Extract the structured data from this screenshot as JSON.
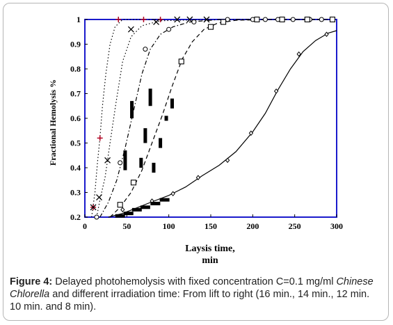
{
  "figure": {
    "label": "Figure 4:",
    "caption_part1": " Delayed photohemolysis with fixed concentration C=0.1 mg/ml ",
    "caption_italic": "Chinese Chlorella",
    "caption_part2": " and different irradiation time: From lift to right (16 min., 14 min., 12 min. 10 min. and 8 min)."
  },
  "chart_data": {
    "type": "scatter",
    "xlabel_line1": "Laysis time,",
    "xlabel_line2": "min",
    "ylabel": "Fractional Hemolysis %",
    "xlim": [
      0,
      300
    ],
    "ylim": [
      0.2,
      1.0
    ],
    "x_ticks": [
      "0",
      "50",
      "100",
      "150",
      "200",
      "250",
      "300"
    ],
    "y_ticks": [
      "0.2",
      "0.3",
      "0.4",
      "0.5",
      "0.6",
      "0.7",
      "0.8",
      "0.9",
      "1"
    ],
    "series": [
      {
        "marker": "plus",
        "color": "#b00020",
        "line": "dotted",
        "points": [
          [
            10,
            0.24
          ],
          [
            18,
            0.52
          ],
          [
            40,
            1.0
          ],
          [
            70,
            1.0
          ],
          [
            90,
            1.0
          ]
        ],
        "curve": [
          [
            8,
            0.2
          ],
          [
            12,
            0.3
          ],
          [
            15,
            0.42
          ],
          [
            18,
            0.52
          ],
          [
            21,
            0.65
          ],
          [
            25,
            0.78
          ],
          [
            30,
            0.9
          ],
          [
            36,
            0.97
          ],
          [
            45,
            1.0
          ],
          [
            95,
            1.0
          ]
        ]
      },
      {
        "marker": "x",
        "color": "#000000",
        "line": "dotted",
        "points": [
          [
            10,
            0.24
          ],
          [
            17,
            0.28
          ],
          [
            27,
            0.43
          ],
          [
            55,
            0.96
          ],
          [
            85,
            0.99
          ],
          [
            110,
            1.0
          ],
          [
            125,
            1.0
          ],
          [
            145,
            1.0
          ]
        ],
        "curve": [
          [
            14,
            0.2
          ],
          [
            18,
            0.27
          ],
          [
            24,
            0.36
          ],
          [
            30,
            0.5
          ],
          [
            37,
            0.66
          ],
          [
            45,
            0.83
          ],
          [
            55,
            0.93
          ],
          [
            68,
            0.975
          ],
          [
            90,
            0.995
          ],
          [
            150,
            1.0
          ]
        ]
      },
      {
        "marker": "circle",
        "color": "#000000",
        "line": "dash-dot",
        "points": [
          [
            14,
            0.2
          ],
          [
            42,
            0.42
          ],
          [
            72,
            0.88
          ],
          [
            100,
            0.96
          ],
          [
            130,
            0.99
          ],
          [
            170,
            1.0
          ],
          [
            200,
            1.0
          ],
          [
            215,
            1.0
          ],
          [
            230,
            1.0
          ],
          [
            248,
            1.0
          ],
          [
            268,
            1.0
          ],
          [
            282,
            1.0
          ]
        ],
        "curve": [
          [
            18,
            0.2
          ],
          [
            28,
            0.26
          ],
          [
            38,
            0.35
          ],
          [
            48,
            0.48
          ],
          [
            58,
            0.63
          ],
          [
            68,
            0.78
          ],
          [
            78,
            0.88
          ],
          [
            90,
            0.94
          ],
          [
            105,
            0.97
          ],
          [
            125,
            0.99
          ],
          [
            160,
            1.0
          ],
          [
            285,
            1.0
          ]
        ]
      },
      {
        "marker": "square",
        "color": "#000000",
        "line": "dashed",
        "points": [
          [
            42,
            0.25
          ],
          [
            58,
            0.34
          ],
          [
            115,
            0.83
          ],
          [
            150,
            0.97
          ],
          [
            165,
            0.99
          ],
          [
            205,
            1.0
          ],
          [
            235,
            1.0
          ],
          [
            265,
            1.0
          ],
          [
            295,
            1.0
          ]
        ],
        "curve": [
          [
            30,
            0.2
          ],
          [
            42,
            0.24
          ],
          [
            55,
            0.3
          ],
          [
            68,
            0.39
          ],
          [
            80,
            0.5
          ],
          [
            92,
            0.61
          ],
          [
            104,
            0.73
          ],
          [
            116,
            0.84
          ],
          [
            128,
            0.91
          ],
          [
            142,
            0.96
          ],
          [
            158,
            0.985
          ],
          [
            180,
            0.997
          ],
          [
            220,
            1.0
          ],
          [
            298,
            1.0
          ]
        ]
      },
      {
        "marker": "diamond",
        "color": "#000000",
        "line": "solid",
        "points": [
          [
            45,
            0.23
          ],
          [
            80,
            0.265
          ],
          [
            105,
            0.295
          ],
          [
            135,
            0.36
          ],
          [
            170,
            0.43
          ],
          [
            198,
            0.54
          ],
          [
            228,
            0.71
          ],
          [
            255,
            0.86
          ],
          [
            288,
            0.94
          ]
        ],
        "curve": [
          [
            28,
            0.2
          ],
          [
            45,
            0.215
          ],
          [
            60,
            0.235
          ],
          [
            80,
            0.262
          ],
          [
            100,
            0.288
          ],
          [
            120,
            0.322
          ],
          [
            140,
            0.368
          ],
          [
            160,
            0.41
          ],
          [
            180,
            0.465
          ],
          [
            200,
            0.545
          ],
          [
            215,
            0.62
          ],
          [
            230,
            0.715
          ],
          [
            245,
            0.8
          ],
          [
            260,
            0.87
          ],
          [
            275,
            0.915
          ],
          [
            290,
            0.945
          ],
          [
            300,
            0.955
          ]
        ]
      }
    ],
    "bars": [
      {
        "x": 48,
        "y0": 0.39,
        "y1": 0.47
      },
      {
        "x": 56,
        "y0": 0.6,
        "y1": 0.67
      },
      {
        "x": 67,
        "y0": 0.4,
        "y1": 0.44
      },
      {
        "x": 72,
        "y0": 0.5,
        "y1": 0.56
      },
      {
        "x": 78,
        "y0": 0.65,
        "y1": 0.72
      },
      {
        "x": 82,
        "y0": 0.38,
        "y1": 0.42
      },
      {
        "x": 90,
        "y0": 0.48,
        "y1": 0.52
      },
      {
        "x": 97,
        "y0": 0.59,
        "y1": 0.61
      },
      {
        "x": 104,
        "y0": 0.64,
        "y1": 0.68
      }
    ]
  }
}
